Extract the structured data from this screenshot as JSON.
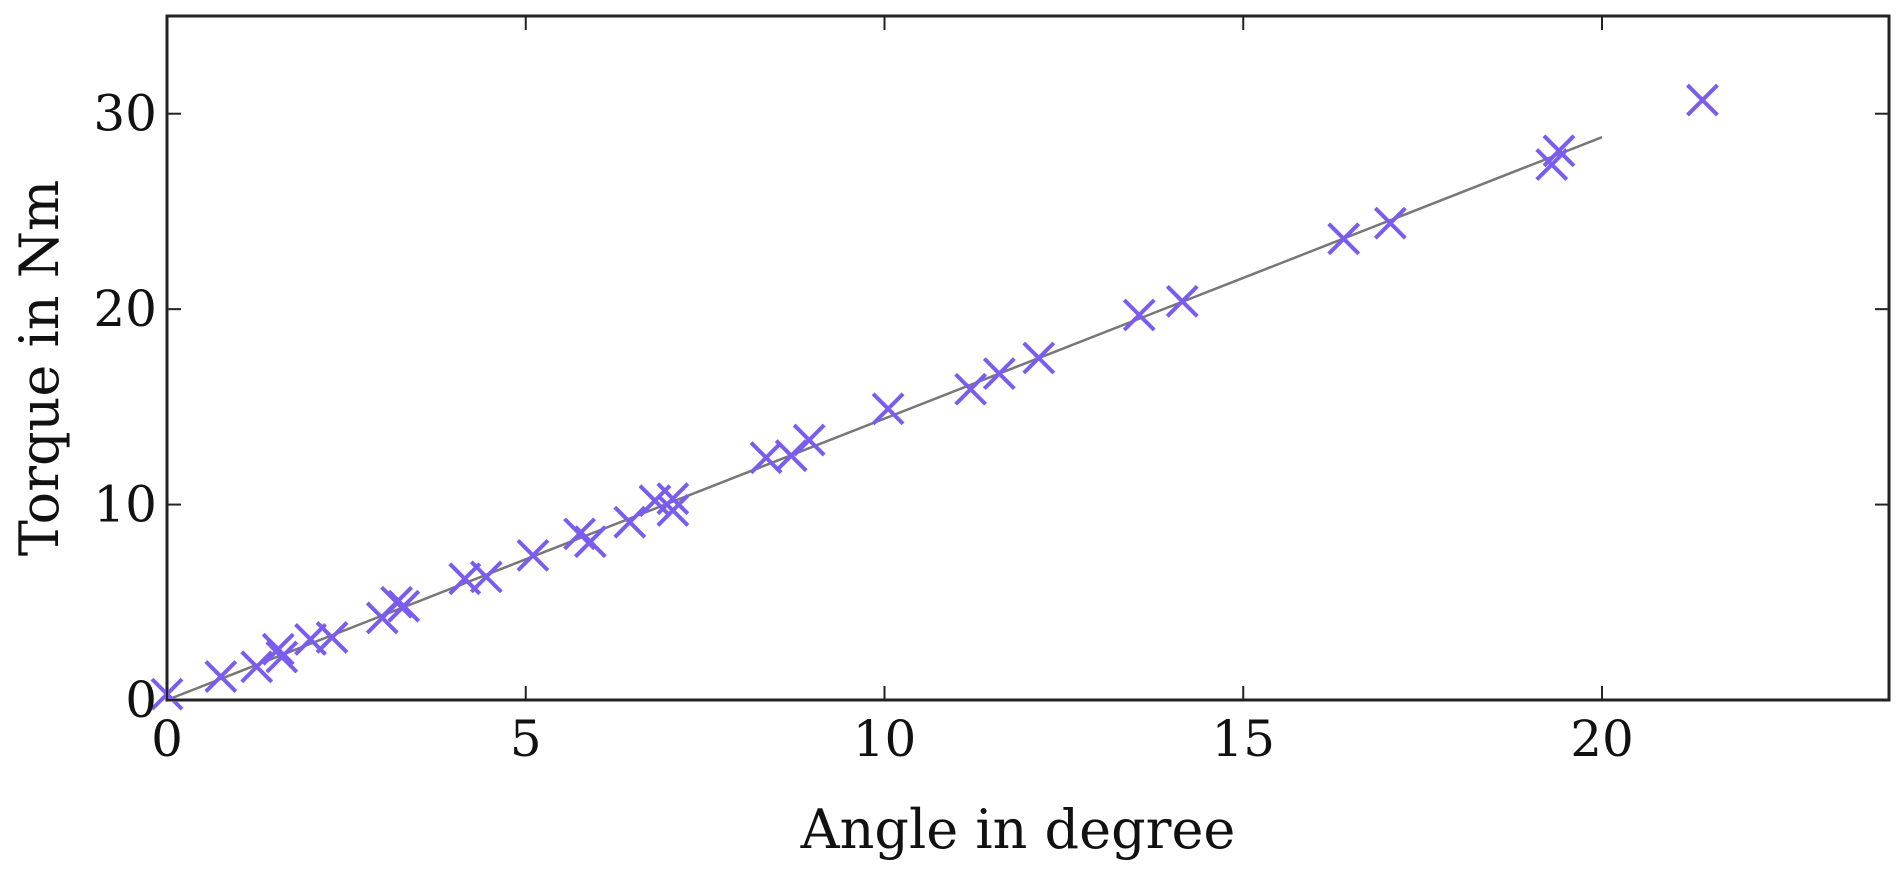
{
  "chart_data": {
    "type": "scatter",
    "title": "",
    "xlabel": "Angle in degree",
    "ylabel": "Torque in Nm",
    "xlim": [
      0,
      24
    ],
    "ylim": [
      0,
      35
    ],
    "xticks": [
      0,
      5,
      10,
      15,
      20
    ],
    "yticks": [
      0,
      10,
      20,
      30
    ],
    "xtick_labels": [
      "0",
      "5",
      "10",
      "15",
      "20"
    ],
    "ytick_labels": [
      "0",
      "10",
      "20",
      "30"
    ],
    "grid": false,
    "legend": "none",
    "marker": "x",
    "marker_color": "#7B5CF0",
    "fit_line_color": "#777777",
    "series": [
      {
        "type": "scatter",
        "points": [
          [
            0.0,
            0.3
          ],
          [
            0.75,
            1.2
          ],
          [
            1.25,
            1.7
          ],
          [
            1.55,
            2.6
          ],
          [
            1.6,
            2.2
          ],
          [
            2.0,
            3.1
          ],
          [
            2.3,
            3.2
          ],
          [
            3.0,
            4.2
          ],
          [
            3.2,
            5.0
          ],
          [
            3.3,
            4.8
          ],
          [
            4.15,
            6.2
          ],
          [
            4.45,
            6.3
          ],
          [
            5.1,
            7.4
          ],
          [
            5.75,
            8.5
          ],
          [
            5.9,
            8.1
          ],
          [
            6.45,
            9.1
          ],
          [
            6.8,
            10.2
          ],
          [
            7.05,
            9.7
          ],
          [
            7.05,
            10.3
          ],
          [
            8.35,
            12.4
          ],
          [
            8.7,
            12.5
          ],
          [
            8.95,
            13.3
          ],
          [
            10.05,
            14.9
          ],
          [
            11.2,
            15.9
          ],
          [
            11.6,
            16.7
          ],
          [
            12.15,
            17.5
          ],
          [
            13.55,
            19.7
          ],
          [
            14.15,
            20.4
          ],
          [
            16.4,
            23.6
          ],
          [
            17.05,
            24.4
          ],
          [
            19.3,
            27.4
          ],
          [
            19.4,
            28.1
          ],
          [
            21.4,
            30.7
          ]
        ]
      },
      {
        "type": "line",
        "points": [
          [
            0,
            0
          ],
          [
            20,
            28.8
          ]
        ]
      }
    ]
  }
}
